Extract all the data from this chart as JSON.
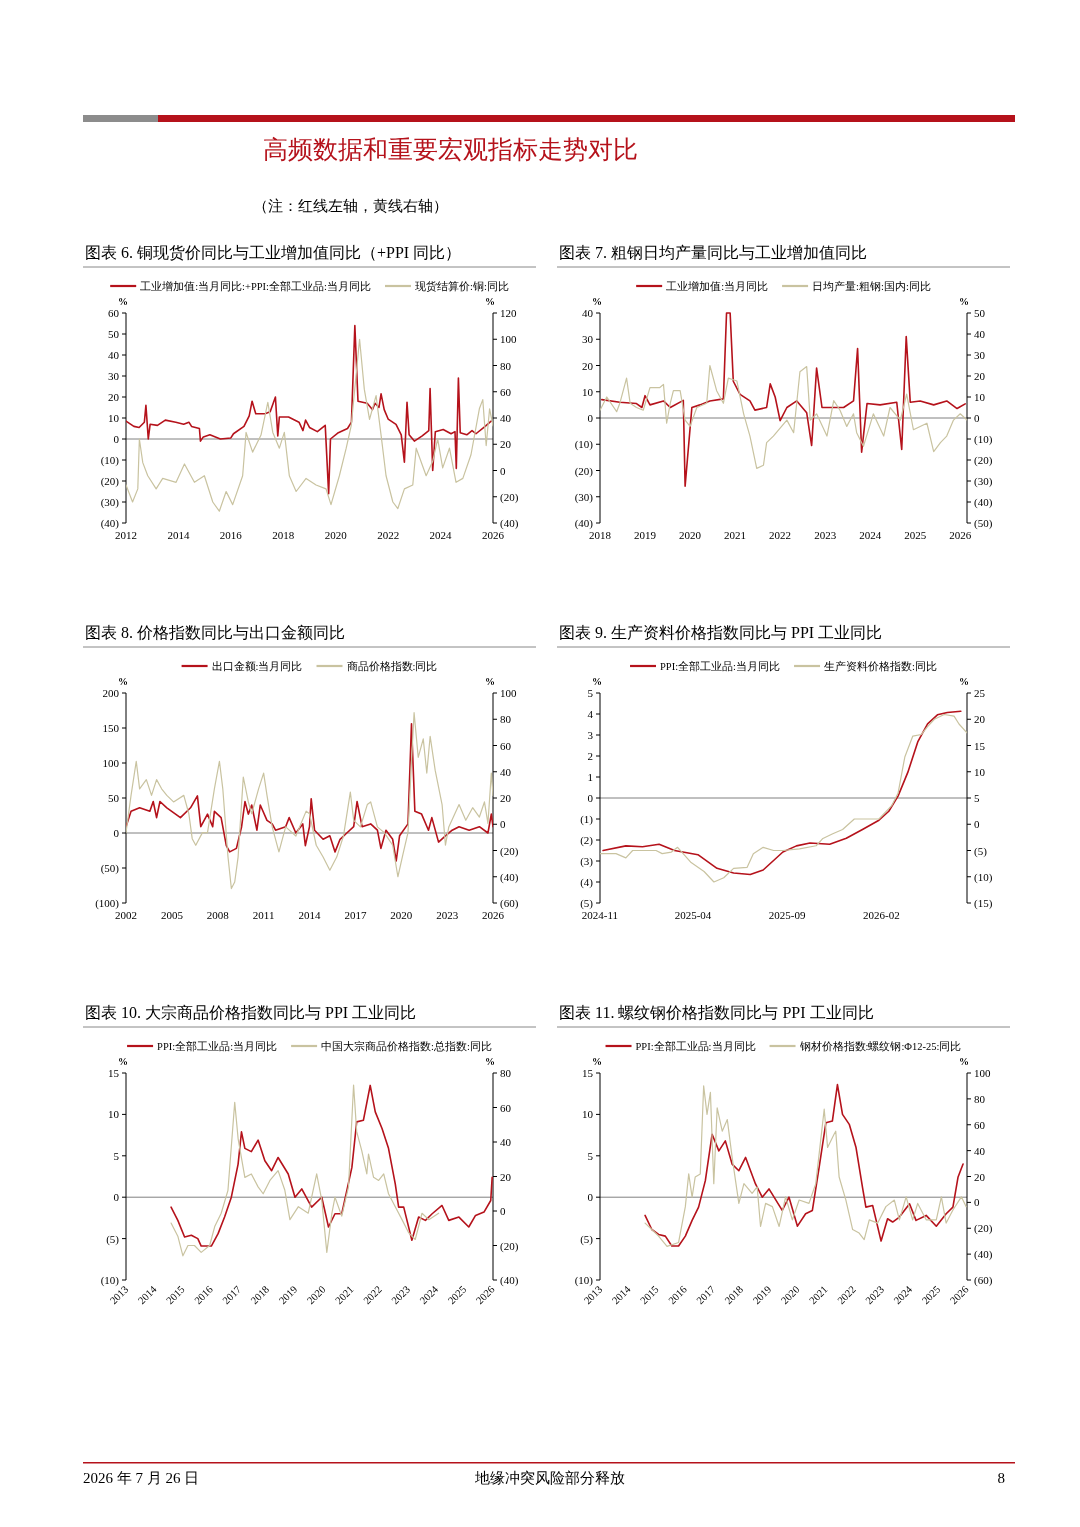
{
  "chart_data": [
    {
      "type": "line",
      "title": "图表 6. 铜现货价同比与工业增加值同比（+PPI 同比）",
      "ylabel": "%",
      "y2label": "%",
      "legend": "top",
      "annotations": [
        "高频数据和重要宏观指标走势对比",
        "（注：红线左轴，黄线右轴）"
      ],
      "xlim": [
        2012,
        2026
      ],
      "xticks": [
        2012,
        2014,
        2016,
        2018,
        2020,
        2022,
        2024,
        2026
      ],
      "ylim": [
        -40,
        60
      ],
      "yticks": [
        {
          "value": -40,
          "label": "(40)"
        },
        {
          "value": -30,
          "label": "(30)"
        },
        {
          "value": -20,
          "label": "(20)"
        },
        {
          "value": -10,
          "label": "(10)"
        },
        0,
        10,
        20,
        30,
        40,
        50,
        60
      ],
      "y2lim": [
        -40,
        120
      ],
      "y2ticks": [
        {
          "value": -40,
          "label": "(40)"
        },
        {
          "value": -20,
          "label": "(20)"
        },
        0,
        20,
        40,
        60,
        80,
        100,
        120
      ],
      "ref_lines": [
        {
          "axis": "y",
          "value": 0,
          "color": "#808080"
        }
      ],
      "series": [
        {
          "name": "工业增加值:当月同比:+PPI:全部工业品:当月同比",
          "color": "#b5121b",
          "x": [
            2012.0,
            2012.3,
            2012.5,
            2012.7,
            2012.76,
            2012.85,
            2012.92,
            2013.2,
            2013.5,
            2013.9,
            2014.2,
            2014.4,
            2014.5,
            2014.8,
            2014.84,
            2014.95,
            2015.2,
            2015.6,
            2016.0,
            2016.1,
            2016.5,
            2016.7,
            2016.81,
            2016.95,
            2017.3,
            2017.5,
            2017.7,
            2017.79,
            2017.85,
            2018.2,
            2018.6,
            2018.75,
            2018.85,
            2019.0,
            2019.3,
            2019.6,
            2019.73,
            2019.8,
            2020.1,
            2020.45,
            2020.6,
            2020.73,
            2020.85,
            2021.2,
            2021.4,
            2021.5,
            2021.65,
            2021.73,
            2021.85,
            2022.0,
            2022.3,
            2022.5,
            2022.62,
            2022.72,
            2022.8,
            2023.0,
            2023.3,
            2023.55,
            2023.6,
            2023.7,
            2023.8,
            2024.1,
            2024.4,
            2024.55,
            2024.6,
            2024.68,
            2024.75,
            2025.0,
            2025.2,
            2025.35,
            2025.7,
            2025.93
          ],
          "values": [
            8.5,
            6,
            5.5,
            8,
            16,
            0,
            7,
            6.5,
            9,
            8,
            7,
            8,
            6,
            5,
            -1,
            1,
            2,
            0,
            0.5,
            2.5,
            6,
            11,
            18,
            12,
            12,
            13,
            20,
            1.5,
            10.5,
            10.5,
            8,
            4,
            9,
            5.5,
            3.5,
            6.5,
            -26,
            0,
            3,
            5,
            8,
            54,
            18,
            17,
            14,
            17,
            15,
            21.5,
            14,
            9.5,
            7,
            2,
            -11,
            17.5,
            2,
            -1,
            1.5,
            4,
            24,
            -15,
            3.5,
            4.5,
            2.5,
            3.5,
            -14,
            29,
            3,
            2,
            4,
            2.5,
            6,
            8.5
          ]
        },
        {
          "name": "现货结算价:铜:同比",
          "color": "#c9c3a0",
          "axis": "y2",
          "x": [
            2012.0,
            2012.25,
            2012.45,
            2012.51,
            2012.64,
            2012.83,
            2013.15,
            2013.4,
            2013.91,
            2014.23,
            2014.61,
            2014.99,
            2015.31,
            2015.56,
            2015.82,
            2016.07,
            2016.45,
            2016.58,
            2016.83,
            2017.15,
            2017.41,
            2017.6,
            2017.85,
            2018.04,
            2018.23,
            2018.49,
            2018.87,
            2019.25,
            2019.63,
            2019.82,
            2020.14,
            2020.4,
            2020.59,
            2020.91,
            2021.09,
            2021.29,
            2021.54,
            2021.73,
            2021.92,
            2022.18,
            2022.37,
            2022.62,
            2022.94,
            2023.07,
            2023.45,
            2023.7,
            2023.89,
            2024.08,
            2024.34,
            2024.59,
            2024.85,
            2025.16,
            2025.48,
            2025.61,
            2025.74,
            2025.87,
            2026.0
          ],
          "values": [
            -11,
            -24,
            -14,
            24,
            6,
            -4,
            -14,
            -6,
            -9,
            5,
            -9,
            -4,
            -24,
            -31,
            -16,
            -26,
            -4,
            29,
            14,
            27,
            52,
            29,
            17,
            29,
            -4,
            -16,
            -6,
            -11,
            -14,
            -26,
            -4,
            17,
            34,
            100,
            62,
            39,
            57,
            27,
            -4,
            -24,
            -29,
            -14,
            -11,
            17,
            -4,
            7,
            24,
            2,
            17,
            -9,
            -6,
            12,
            47,
            54,
            19,
            47,
            34
          ]
        }
      ]
    },
    {
      "type": "line",
      "title": "图表 7. 粗钢日均产量同比与工业增加值同比",
      "ylabel": "%",
      "y2label": "%",
      "legend": "top",
      "xlim": [
        2018,
        2026.15
      ],
      "xticks": [
        2018,
        2019,
        2020,
        2021,
        2022,
        2023,
        2024,
        2025,
        2026
      ],
      "ylim": [
        -40,
        40
      ],
      "yticks": [
        {
          "value": -40,
          "label": "(40)"
        },
        {
          "value": -30,
          "label": "(30)"
        },
        {
          "value": -20,
          "label": "(20)"
        },
        {
          "value": -10,
          "label": "(10)"
        },
        0,
        10,
        20,
        30,
        40
      ],
      "y2lim": [
        -50,
        50
      ],
      "y2ticks": [
        {
          "value": -50,
          "label": "(50)"
        },
        {
          "value": -40,
          "label": "(40)"
        },
        {
          "value": -30,
          "label": "(30)"
        },
        {
          "value": -20,
          "label": "(20)"
        },
        {
          "value": -10,
          "label": "(10)"
        },
        0,
        10,
        20,
        30,
        40,
        50
      ],
      "ref_lines": [
        {
          "axis": "y",
          "value": 0,
          "color": "#808080"
        }
      ],
      "series": [
        {
          "name": "工业增加值:当月同比",
          "color": "#b5121b",
          "x": [
            2018.04,
            2018.44,
            2018.81,
            2018.93,
            2019.0,
            2019.11,
            2019.41,
            2019.56,
            2019.85,
            2019.89,
            2020.04,
            2020.22,
            2020.44,
            2020.74,
            2020.81,
            2020.89,
            2020.96,
            2021.11,
            2021.33,
            2021.44,
            2021.7,
            2021.78,
            2021.89,
            2022.0,
            2022.15,
            2022.37,
            2022.59,
            2022.7,
            2022.81,
            2022.93,
            2023.11,
            2023.41,
            2023.63,
            2023.72,
            2023.81,
            2023.93,
            2024.22,
            2024.59,
            2024.7,
            2024.8,
            2024.89,
            2025.11,
            2025.41,
            2025.7,
            2025.93,
            2026.11
          ],
          "values": [
            7,
            6,
            5.5,
            4,
            8.5,
            5,
            6.5,
            4,
            6.7,
            -26,
            4,
            5,
            6.5,
            7.3,
            40,
            40,
            14,
            9,
            6.5,
            3,
            4,
            13,
            8,
            -1,
            4,
            6.5,
            2,
            -10.5,
            19,
            4,
            4,
            4,
            6.5,
            26.5,
            -13,
            5.5,
            5,
            6,
            -12,
            31,
            6,
            6.5,
            5,
            6.5,
            3.6,
            5.4
          ]
        },
        {
          "name": "日均产量:粗钢:国内:同比",
          "color": "#c9c3a0",
          "axis": "y2",
          "x": [
            2018.0,
            2018.15,
            2018.37,
            2018.44,
            2018.59,
            2018.67,
            2018.81,
            2018.96,
            2019.11,
            2019.33,
            2019.41,
            2019.48,
            2019.56,
            2019.63,
            2019.78,
            2019.89,
            2020.0,
            2020.15,
            2020.37,
            2020.44,
            2020.59,
            2020.74,
            2020.85,
            2021.04,
            2021.19,
            2021.33,
            2021.48,
            2021.63,
            2021.7,
            2021.85,
            2022.15,
            2022.3,
            2022.44,
            2022.59,
            2022.67,
            2022.81,
            2023.04,
            2023.19,
            2023.33,
            2023.48,
            2023.63,
            2023.7,
            2023.85,
            2024.07,
            2024.3,
            2024.44,
            2024.67,
            2024.81,
            2024.96,
            2025.26,
            2025.41,
            2025.56,
            2025.7,
            2025.85,
            2026.0,
            2026.15
          ],
          "values": [
            3.7,
            10,
            3,
            7,
            19,
            7,
            5,
            3.7,
            14.5,
            14.5,
            16,
            -2.5,
            7,
            13,
            13,
            -1,
            -4,
            5,
            7,
            25,
            13,
            7,
            19,
            17.6,
            2,
            -8.6,
            -24,
            -22.5,
            -11.7,
            -8.6,
            -1,
            -7,
            22,
            24.5,
            -1,
            2,
            -8.6,
            8.3,
            3.7,
            -4,
            2,
            -7,
            -13.5,
            2,
            -8.6,
            5,
            -1,
            11.4,
            -5.6,
            -2.5,
            -16,
            -11.7,
            -8.6,
            -1,
            2,
            -1
          ]
        }
      ]
    },
    {
      "type": "line",
      "title": "图表 8. 价格指数同比与出口金额同比",
      "ylabel": "%",
      "y2label": "%",
      "legend": "top",
      "xlim": [
        2002,
        2026
      ],
      "xticks": [
        2002,
        2005,
        2008,
        2011,
        2014,
        2017,
        2020,
        2023,
        2026
      ],
      "ylim": [
        -100,
        200
      ],
      "yticks": [
        {
          "value": -100,
          "label": "(100)"
        },
        {
          "value": -50,
          "label": "(50)"
        },
        0,
        50,
        100,
        150,
        200
      ],
      "y2lim": [
        -60,
        100
      ],
      "y2ticks": [
        {
          "value": -60,
          "label": "(60)"
        },
        {
          "value": -40,
          "label": "(40)"
        },
        {
          "value": -20,
          "label": "(20)"
        },
        0,
        20,
        40,
        60,
        80,
        100
      ],
      "ref_lines": [
        {
          "axis": "y",
          "value": 0,
          "color": "#808080"
        }
      ],
      "series": [
        {
          "name": "出口金额:当月同比",
          "color": "#b5121b",
          "x": [
            2002,
            2002.33,
            2002.89,
            2003.56,
            2003.78,
            2004.0,
            2004.22,
            2004.67,
            2005.56,
            2006.22,
            2006.67,
            2006.89,
            2007.33,
            2007.67,
            2007.78,
            2008.22,
            2008.56,
            2008.78,
            2009.22,
            2009.56,
            2009.78,
            2010.0,
            2010.22,
            2010.56,
            2010.78,
            2011.22,
            2011.56,
            2011.78,
            2012.44,
            2012.67,
            2013.11,
            2013.56,
            2013.73,
            2014.0,
            2014.11,
            2014.33,
            2014.89,
            2015.33,
            2015.67,
            2016.0,
            2016.44,
            2016.89,
            2017.11,
            2017.44,
            2018.0,
            2018.44,
            2018.67,
            2019.0,
            2019.44,
            2019.67,
            2019.89,
            2020.44,
            2020.67,
            2020.89,
            2021.33,
            2021.78,
            2022.0,
            2022.44,
            2022.89,
            2023.33,
            2023.78,
            2024.44,
            2025.11,
            2025.67,
            2025.89,
            2026.0
          ],
          "values": [
            9,
            31,
            36,
            31,
            45,
            22,
            45,
            36,
            22,
            36,
            53,
            9,
            27,
            9,
            31,
            22,
            -18,
            -27,
            -22,
            9,
            45,
            27,
            40,
            4,
            40,
            18,
            13,
            4,
            9,
            22,
            0,
            13,
            -18,
            9,
            49,
            4,
            -9,
            -4,
            -27,
            -9,
            0,
            9,
            45,
            9,
            13,
            4,
            -22,
            4,
            -9,
            -40,
            -4,
            13,
            156,
            31,
            27,
            4,
            22,
            -13,
            -4,
            4,
            9,
            4,
            9,
            0,
            27,
            9
          ]
        },
        {
          "name": "商品价格指数:同比",
          "color": "#c9c3a0",
          "axis": "y2",
          "x": [
            2002,
            2002.33,
            2002.67,
            2002.89,
            2003.33,
            2003.67,
            2004,
            2004.33,
            2004.67,
            2005.11,
            2005.78,
            2006.11,
            2006.33,
            2006.56,
            2007,
            2007.33,
            2007.78,
            2008.11,
            2008.33,
            2008.67,
            2008.89,
            2009.11,
            2009.33,
            2009.67,
            2010,
            2010.22,
            2010.67,
            2011,
            2011.22,
            2011.56,
            2012,
            2012.44,
            2013.11,
            2013.78,
            2014,
            2014.44,
            2014.89,
            2015.33,
            2015.78,
            2016.22,
            2016.67,
            2016.89,
            2017.33,
            2017.78,
            2018,
            2018.44,
            2018.89,
            2019.44,
            2019.78,
            2020.11,
            2020.44,
            2020.67,
            2020.84,
            2021.11,
            2021.44,
            2021.67,
            2021.89,
            2022.22,
            2022.67,
            2022.89,
            2023.11,
            2023.78,
            2024.22,
            2024.67,
            2025.11,
            2025.44,
            2025.67,
            2025.89,
            2026
          ],
          "values": [
            -6.4,
            22,
            48,
            27,
            34,
            22,
            34,
            27,
            22,
            17,
            22,
            8,
            -11,
            -16,
            -6.4,
            -6.4,
            27,
            48,
            27,
            -25,
            -49,
            -44,
            -25,
            36,
            17,
            8,
            27,
            39,
            22,
            -2,
            -21,
            -2,
            -9,
            10,
            8,
            -16,
            -25,
            -35,
            -25,
            -9,
            24.5,
            3,
            -2,
            15,
            17,
            -2,
            -6.4,
            -16,
            -40,
            -23,
            -6.4,
            48,
            85,
            51,
            65,
            39,
            67,
            41,
            15,
            -16,
            -2,
            15,
            3,
            12.6,
            5.5,
            17,
            0.7,
            39,
            22
          ]
        }
      ]
    },
    {
      "type": "line",
      "title": "图表 9. 生产资料价格指数同比与 PPI 工业同比",
      "ylabel": "%",
      "y2label": "%",
      "legend": "top",
      "xlim": [
        "2024-11",
        "2026-06-20"
      ],
      "xticks": [
        "2024-11",
        "2025-04",
        "2025-09",
        "2026-02"
      ],
      "ylim": [
        -5,
        5
      ],
      "yticks": [
        {
          "value": -5,
          "label": "(5)"
        },
        {
          "value": -4,
          "label": "(4)"
        },
        {
          "value": -3,
          "label": "(3)"
        },
        {
          "value": -2,
          "label": "(2)"
        },
        {
          "value": -1,
          "label": "(1)"
        },
        0,
        1,
        2,
        3,
        4,
        5
      ],
      "y2lim": [
        -15,
        25
      ],
      "y2ticks": [
        {
          "value": -15,
          "label": "(15)"
        },
        {
          "value": -10,
          "label": "(10)"
        },
        {
          "value": -5,
          "label": "(5)"
        },
        0,
        5,
        10,
        15,
        20,
        25
      ],
      "ref_lines": [
        {
          "axis": "y",
          "value": 0,
          "color": "#808080"
        }
      ],
      "series": [
        {
          "name": "PPI:全部工业品:当月同比",
          "color": "#b5121b",
          "x": [
            "2024-11-06",
            "2024-12-13",
            "2025-01-09",
            "2025-02-05",
            "2025-03-02",
            "2025-04-09",
            "2025-05-10",
            "2025-06-06",
            "2025-07-03",
            "2025-07-24",
            "2025-08-25",
            "2025-09-16",
            "2025-10-08",
            "2025-11-09",
            "2025-12-06",
            "2026-01-02",
            "2026-01-28",
            "2026-02-13",
            "2026-02-28",
            "2026-03-16",
            "2026-04-01",
            "2026-04-17",
            "2026-05-03",
            "2026-05-19",
            "2026-06-10"
          ],
          "values": [
            -2.5,
            -2.28,
            -2.32,
            -2.2,
            -2.5,
            -2.7,
            -3.35,
            -3.57,
            -3.64,
            -3.43,
            -2.57,
            -2.28,
            -2.14,
            -2.2,
            -1.92,
            -1.49,
            -1.06,
            -0.63,
            0.09,
            1.23,
            2.67,
            3.53,
            3.96,
            4.07,
            4.13
          ]
        },
        {
          "name": "生产资料价格指数:同比",
          "color": "#c9c3a0",
          "axis": "y2",
          "x": [
            "2024-11-01",
            "2024-11-27",
            "2024-12-13",
            "2024-12-24",
            "2025-01-31",
            "2025-02-10",
            "2025-02-25",
            "2025-03-07",
            "2025-03-29",
            "2025-04-19",
            "2025-05-05",
            "2025-05-21",
            "2025-06-06",
            "2025-06-28",
            "2025-07-08",
            "2025-07-24",
            "2025-08-10",
            "2025-08-25",
            "2025-09-21",
            "2025-10-18",
            "2025-10-29",
            "2025-11-14",
            "2025-11-30",
            "2025-12-19",
            "2026-01-28",
            "2026-02-18",
            "2026-02-28",
            "2026-03-11",
            "2026-03-24",
            "2026-04-07",
            "2026-04-17",
            "2026-04-28",
            "2026-05-14",
            "2026-05-30",
            "2026-06-07",
            "2026-06-20"
          ],
          "values": [
            -5.6,
            -5.6,
            -6.4,
            -5,
            -5,
            -5.6,
            -5.3,
            -4.4,
            -7.3,
            -9,
            -11,
            -10.2,
            -8.4,
            -8.2,
            -5.6,
            -4.4,
            -5,
            -5,
            -4.7,
            -4.1,
            -2.7,
            -1.8,
            -1,
            1,
            1,
            3.6,
            5.9,
            12.8,
            16.8,
            17.1,
            18.6,
            20,
            20.9,
            20.6,
            19.1,
            17.4
          ]
        }
      ]
    },
    {
      "type": "line",
      "title": "图表 10. 大宗商品价格指数同比与 PPI 工业同比",
      "ylabel": "%",
      "y2label": "%",
      "legend": "top",
      "xlim": [
        2013,
        2026.03
      ],
      "xticks": [
        2013,
        2014,
        2015,
        2016,
        2017,
        2018,
        2019,
        2020,
        2021,
        2022,
        2023,
        2024,
        2025,
        2026
      ],
      "ylim": [
        -10,
        15
      ],
      "yticks": [
        {
          "value": -10,
          "label": "(10)"
        },
        {
          "value": -5,
          "label": "(5)"
        },
        0,
        5,
        10,
        15
      ],
      "y2lim": [
        -40,
        80
      ],
      "y2ticks": [
        {
          "value": -40,
          "label": "(40)"
        },
        {
          "value": -20,
          "label": "(20)"
        },
        0,
        20,
        40,
        60,
        80
      ],
      "ref_lines": [
        {
          "axis": "y",
          "value": 0,
          "color": "#808080"
        }
      ],
      "series": [
        {
          "name": "PPI:全部工业品:当月同比",
          "color": "#b5121b",
          "x": [
            2014.6,
            2014.84,
            2015.08,
            2015.32,
            2015.55,
            2015.67,
            2016.03,
            2016.27,
            2016.5,
            2016.74,
            2016.98,
            2017.1,
            2017.22,
            2017.45,
            2017.69,
            2017.93,
            2018.17,
            2018.4,
            2018.76,
            2019.0,
            2019.24,
            2019.59,
            2019.95,
            2020.19,
            2020.42,
            2020.66,
            2021.02,
            2021.19,
            2021.43,
            2021.67,
            2021.85,
            2022.09,
            2022.32,
            2022.56,
            2022.68,
            2022.86,
            2023.15,
            2023.39,
            2023.63,
            2023.87,
            2024.22,
            2024.46,
            2024.82,
            2025.17,
            2025.41,
            2025.71,
            2025.95,
            2026.0
          ],
          "values": [
            -1.2,
            -2.8,
            -4.8,
            -4.6,
            -5,
            -5.9,
            -5.9,
            -4.4,
            -2.4,
            0,
            4,
            7.9,
            5.9,
            5.5,
            6.9,
            4.4,
            3.2,
            4.8,
            2.8,
            0,
            1,
            -1.2,
            0,
            -3.6,
            -2,
            -2,
            3.6,
            9.1,
            9.3,
            13.5,
            10.3,
            8.3,
            5.9,
            1.6,
            -1.2,
            -1.2,
            -5.2,
            -2.4,
            -2.8,
            -2,
            -1,
            -2.8,
            -2.4,
            -3.6,
            -2.2,
            -1.8,
            -0.4,
            2.4
          ]
        },
        {
          "name": "中国大宗商品价格指数:总指数:同比",
          "color": "#c9c3a0",
          "axis": "y2",
          "x": [
            2014.6,
            2014.84,
            2015.02,
            2015.2,
            2015.43,
            2015.67,
            2015.97,
            2016.15,
            2016.38,
            2016.62,
            2016.86,
            2016.98,
            2017.22,
            2017.45,
            2017.69,
            2017.87,
            2018.11,
            2018.4,
            2018.64,
            2018.82,
            2019.12,
            2019.47,
            2019.77,
            2019.95,
            2020.13,
            2020.31,
            2020.42,
            2020.66,
            2020.9,
            2021.08,
            2021.19,
            2021.37,
            2021.55,
            2021.61,
            2021.79,
            2021.97,
            2022.15,
            2022.32,
            2022.56,
            2022.8,
            2023.04,
            2023.27,
            2023.51,
            2023.75,
            2024.1
          ],
          "values": [
            -7,
            -14.6,
            -26,
            -20,
            -20,
            -24,
            -20,
            -9,
            -1.3,
            12,
            63,
            42,
            19.5,
            21.5,
            14,
            10,
            17.7,
            23.4,
            12,
            -5,
            2.5,
            -1.3,
            21.5,
            6.3,
            -24,
            -1.3,
            8,
            -3,
            14,
            73,
            46,
            35,
            21.5,
            33,
            19.5,
            17.7,
            21.5,
            10,
            2.5,
            -5,
            -12.7,
            -16.5,
            -1.3,
            -5,
            -1.3
          ]
        }
      ]
    },
    {
      "type": "line",
      "title": "图表 11. 螺纹钢价格指数同比与 PPI 工业同比",
      "ylabel": "%",
      "y2label": "%",
      "legend": "top",
      "annotations": [
        "2026 年 7 月 26 日",
        "地缘冲突风险部分释放",
        "8"
      ],
      "xlim": [
        2013,
        2026.03
      ],
      "xticks": [
        2013,
        2014,
        2015,
        2016,
        2017,
        2018,
        2019,
        2020,
        2021,
        2022,
        2023,
        2024,
        2025,
        2026
      ],
      "ylim": [
        -10,
        15
      ],
      "yticks": [
        {
          "value": -10,
          "label": "(10)"
        },
        {
          "value": -5,
          "label": "(5)"
        },
        0,
        5,
        10,
        15
      ],
      "y2lim": [
        -60,
        100
      ],
      "y2ticks": [
        {
          "value": -60,
          "label": "(60)"
        },
        {
          "value": -40,
          "label": "(40)"
        },
        {
          "value": -20,
          "label": "(20)"
        },
        0,
        20,
        40,
        60,
        80,
        100
      ],
      "ref_lines": [
        {
          "axis": "y",
          "value": 0,
          "color": "#808080"
        }
      ],
      "series": [
        {
          "name": "PPI:全部工业品:当月同比",
          "color": "#b5121b",
          "x": [
            2014.6,
            2014.84,
            2015.08,
            2015.32,
            2015.55,
            2015.79,
            2016.03,
            2016.27,
            2016.5,
            2016.74,
            2016.98,
            2017.22,
            2017.45,
            2017.69,
            2017.93,
            2018.17,
            2018.52,
            2018.76,
            2019.0,
            2019.47,
            2019.71,
            2020.01,
            2020.3,
            2020.54,
            2020.78,
            2021.02,
            2021.25,
            2021.43,
            2021.61,
            2021.85,
            2022.09,
            2022.32,
            2022.44,
            2022.68,
            2022.98,
            2023.21,
            2023.39,
            2023.63,
            2023.99,
            2024.22,
            2024.58,
            2024.94,
            2025.29,
            2025.53,
            2025.71,
            2025.89
          ],
          "values": [
            -2.2,
            -3.9,
            -4.5,
            -4.7,
            -5.9,
            -5.9,
            -4.7,
            -2.8,
            -1.2,
            2,
            7.6,
            5.6,
            6.8,
            4,
            3.2,
            4.8,
            1.6,
            0,
            1,
            -1.6,
            0,
            -3.5,
            -2,
            -1.6,
            3.6,
            9,
            9.2,
            13.6,
            10,
            8.8,
            6,
            1.2,
            -1.2,
            -1,
            -5.3,
            -2.6,
            -3,
            -2.4,
            -0.8,
            -2.8,
            -2.2,
            -3.5,
            -2,
            -1.2,
            2.4,
            4
          ]
        },
        {
          "name": "钢材价格指数:螺纹钢:Φ12-25:同比",
          "color": "#c9c3a0",
          "axis": "y2",
          "x": [
            2014.6,
            2014.84,
            2015.08,
            2015.38,
            2015.79,
            2016.03,
            2016.15,
            2016.27,
            2016.38,
            2016.56,
            2016.68,
            2016.8,
            2016.92,
            2017.04,
            2017.16,
            2017.34,
            2017.52,
            2017.69,
            2017.93,
            2018.11,
            2018.4,
            2018.58,
            2018.7,
            2018.88,
            2019.12,
            2019.36,
            2019.59,
            2019.83,
            2020.07,
            2020.42,
            2020.66,
            2020.96,
            2021.08,
            2021.31,
            2021.37,
            2021.49,
            2021.73,
            2021.97,
            2022.2,
            2022.38,
            2022.56,
            2022.86,
            2023.15,
            2023.45,
            2023.63,
            2023.87,
            2024.1,
            2024.28,
            2024.58,
            2024.94,
            2025.12,
            2025.29,
            2025.53,
            2025.83,
            2026.0
          ],
          "values": [
            -16,
            -21,
            -26,
            -34,
            -31,
            -3.3,
            22,
            4,
            19.6,
            22,
            90,
            68,
            85,
            14.5,
            73,
            55,
            64,
            35,
            -0.8,
            14.5,
            7,
            12,
            -18.6,
            -0.8,
            -3.3,
            -18.6,
            4.3,
            -13.5,
            1.8,
            -0.8,
            14.5,
            72,
            42.5,
            52.7,
            55,
            19.6,
            1.8,
            -21,
            -23.7,
            -28.8,
            -13.5,
            -16,
            -3.3,
            1.8,
            -13.5,
            4.3,
            -13.5,
            -0.8,
            -13.5,
            -13.5,
            4.3,
            -16,
            -5.9,
            4.3,
            -3.3
          ]
        }
      ]
    }
  ]
}
